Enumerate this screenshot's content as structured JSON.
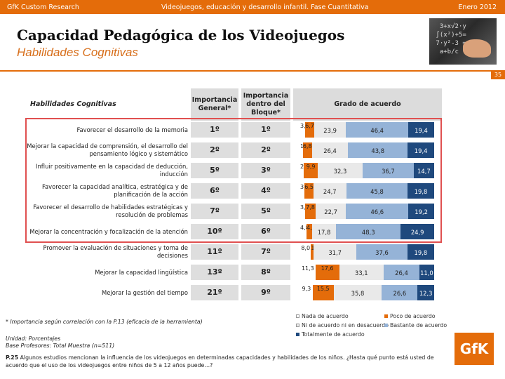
{
  "header": {
    "left": "GfK Custom Research",
    "center": "Videojuegos, educación y desarrollo infantil. Fase Cuantitativa",
    "right": "Enero 2012"
  },
  "title": "Capacidad Pedagógica de los Videojuegos",
  "subtitle": "Habilidades Cognitivas",
  "page_number": "35",
  "colors": {
    "accent": "#e46c0a",
    "nada": "#ffffff",
    "poco": "#e46c0a",
    "ni": "#e9e9e9",
    "bastante": "#95b3d7",
    "totalmente": "#1f497d",
    "highlight_frame": "#e05050"
  },
  "photo": {
    "icon": "blackboard-photo"
  },
  "table": {
    "row_header": "Habilidades Cognitivas",
    "col_importance": "Importancia General*",
    "col_importance_block": "Importancia dentro del Bloque*",
    "col_grade": "Grado de acuerdo"
  },
  "chart_data": {
    "type": "bar",
    "stacked": true,
    "orientation": "horizontal",
    "categories": [
      "Favorecer el desarrollo de la memoria",
      "Mejorar la capacidad de comprensión, el desarrollo del pensamiento lógico y sistemático",
      "Influir positivamente en la capacidad de deducción, inducción",
      "Favorecer la capacidad analítica, estratégica y de planificación de la acción",
      "Favorecer el desarrollo de habilidades estratégicas y resolución de problemas",
      "Mejorar la concentración y focalización de la atención",
      "Promover la evaluación de situaciones y toma de decisiones",
      "Mejorar la capacidad lingüística",
      "Mejorar la gestión del tiempo"
    ],
    "importancia_general": [
      "1º",
      "2º",
      "5º",
      "6º",
      "7º",
      "10º",
      "11º",
      "13º",
      "21º"
    ],
    "importancia_bloque": [
      "1º",
      "2º",
      "3º",
      "4º",
      "5º",
      "6º",
      "7º",
      "8º",
      "9º"
    ],
    "series": [
      {
        "name": "Nada de acuerdo",
        "values": [
          3.7,
          1.9,
          2.7,
          3.3,
          3.7,
          4.8,
          8.0,
          11.3,
          9.3
        ]
      },
      {
        "name": "Poco de acuerdo",
        "values": [
          6.7,
          6.8,
          9.9,
          6.5,
          7.8,
          4.1,
          1.9,
          17.6,
          15.5
        ]
      },
      {
        "name": "Ni de acuerdo ni en desacuerdo",
        "values": [
          23.9,
          26.4,
          32.3,
          24.7,
          22.7,
          17.8,
          31.7,
          33.1,
          35.8
        ]
      },
      {
        "name": "Bastante de acuerdo",
        "values": [
          46.4,
          43.8,
          36.7,
          45.8,
          46.6,
          48.3,
          37.6,
          26.4,
          26.6
        ]
      },
      {
        "name": "Totalmente de acuerdo",
        "values": [
          19.4,
          19.4,
          14.7,
          19.8,
          19.2,
          24.9,
          19.8,
          11.0,
          12.3
        ]
      }
    ],
    "labels": [
      [
        "3,7",
        "6,7",
        "23,9",
        "46,4",
        "19,4"
      ],
      [
        "1,9",
        "6,8",
        "26,4",
        "43,8",
        "19,4"
      ],
      [
        "2,7",
        "9,9",
        "32,3",
        "36,7",
        "14,7"
      ],
      [
        "3,3",
        "6,5",
        "24,7",
        "45,8",
        "19,8"
      ],
      [
        "3,7",
        "7,8",
        "22,7",
        "46,6",
        "19,2"
      ],
      [
        "4,8",
        "4,1",
        "17,8",
        "48,3",
        "24,9"
      ],
      [
        "8,0",
        "1,9",
        "31,7",
        "37,6",
        "19,8"
      ],
      [
        "11,3",
        "17,6",
        "33,1",
        "26,4",
        "11,0"
      ],
      [
        "9,3",
        "15,5",
        "35,8",
        "26,6",
        "12,3"
      ]
    ]
  },
  "footnote": "* Importancia según correlación con la P.13 (eficacia de la herramienta)",
  "unit_lines": [
    "Unidad: Porcentajes",
    "Base Profesores: Total Muestra (n=511)"
  ],
  "question_code": "P.25",
  "question_text": "Algunos estudios mencionan la influencia de los videojuegos en determinadas capacidades y habilidades de los niños. ¿Hasta qué punto está usted de acuerdo que el uso de los videojuegos entre niños de 5 a 12 años puede…?",
  "logo": "GfK"
}
